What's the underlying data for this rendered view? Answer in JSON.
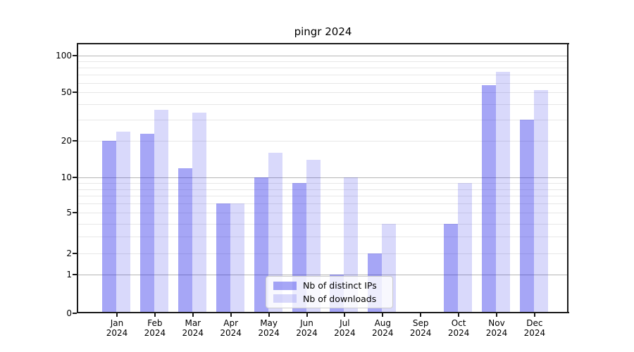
{
  "title": "pingr 2024",
  "chart_data": {
    "type": "bar",
    "title": "pingr 2024",
    "y_scale": "pseudo-log (asinh)",
    "grid": "on",
    "legend_position": "lower center",
    "categories": [
      "Jan",
      "Feb",
      "Mar",
      "Apr",
      "May",
      "Jun",
      "Jul",
      "Aug",
      "Sep",
      "Oct",
      "Nov",
      "Dec"
    ],
    "category_year": "2024",
    "series": [
      {
        "name": "Nb of distinct IPs",
        "color": "rgba(25,25,232,0.39)",
        "values": [
          20,
          23,
          12,
          6,
          10,
          9,
          1,
          2,
          0,
          4,
          57,
          30
        ]
      },
      {
        "name": "Nb of downloads",
        "color": "rgba(25,25,232,0.165)",
        "values": [
          24,
          36,
          34,
          6,
          16,
          14,
          10,
          4,
          0,
          9,
          74,
          52
        ]
      }
    ],
    "y_ticks": [
      0,
      1,
      2,
      5,
      10,
      20,
      50,
      100
    ],
    "gridlines_minor": [
      2,
      3,
      4,
      5,
      6,
      7,
      8,
      9,
      20,
      30,
      40,
      50,
      60,
      70,
      80,
      90
    ],
    "gridlines_major": [
      1,
      10,
      100
    ],
    "ylim": [
      0,
      124
    ],
    "xlabel": "",
    "ylabel": ""
  }
}
